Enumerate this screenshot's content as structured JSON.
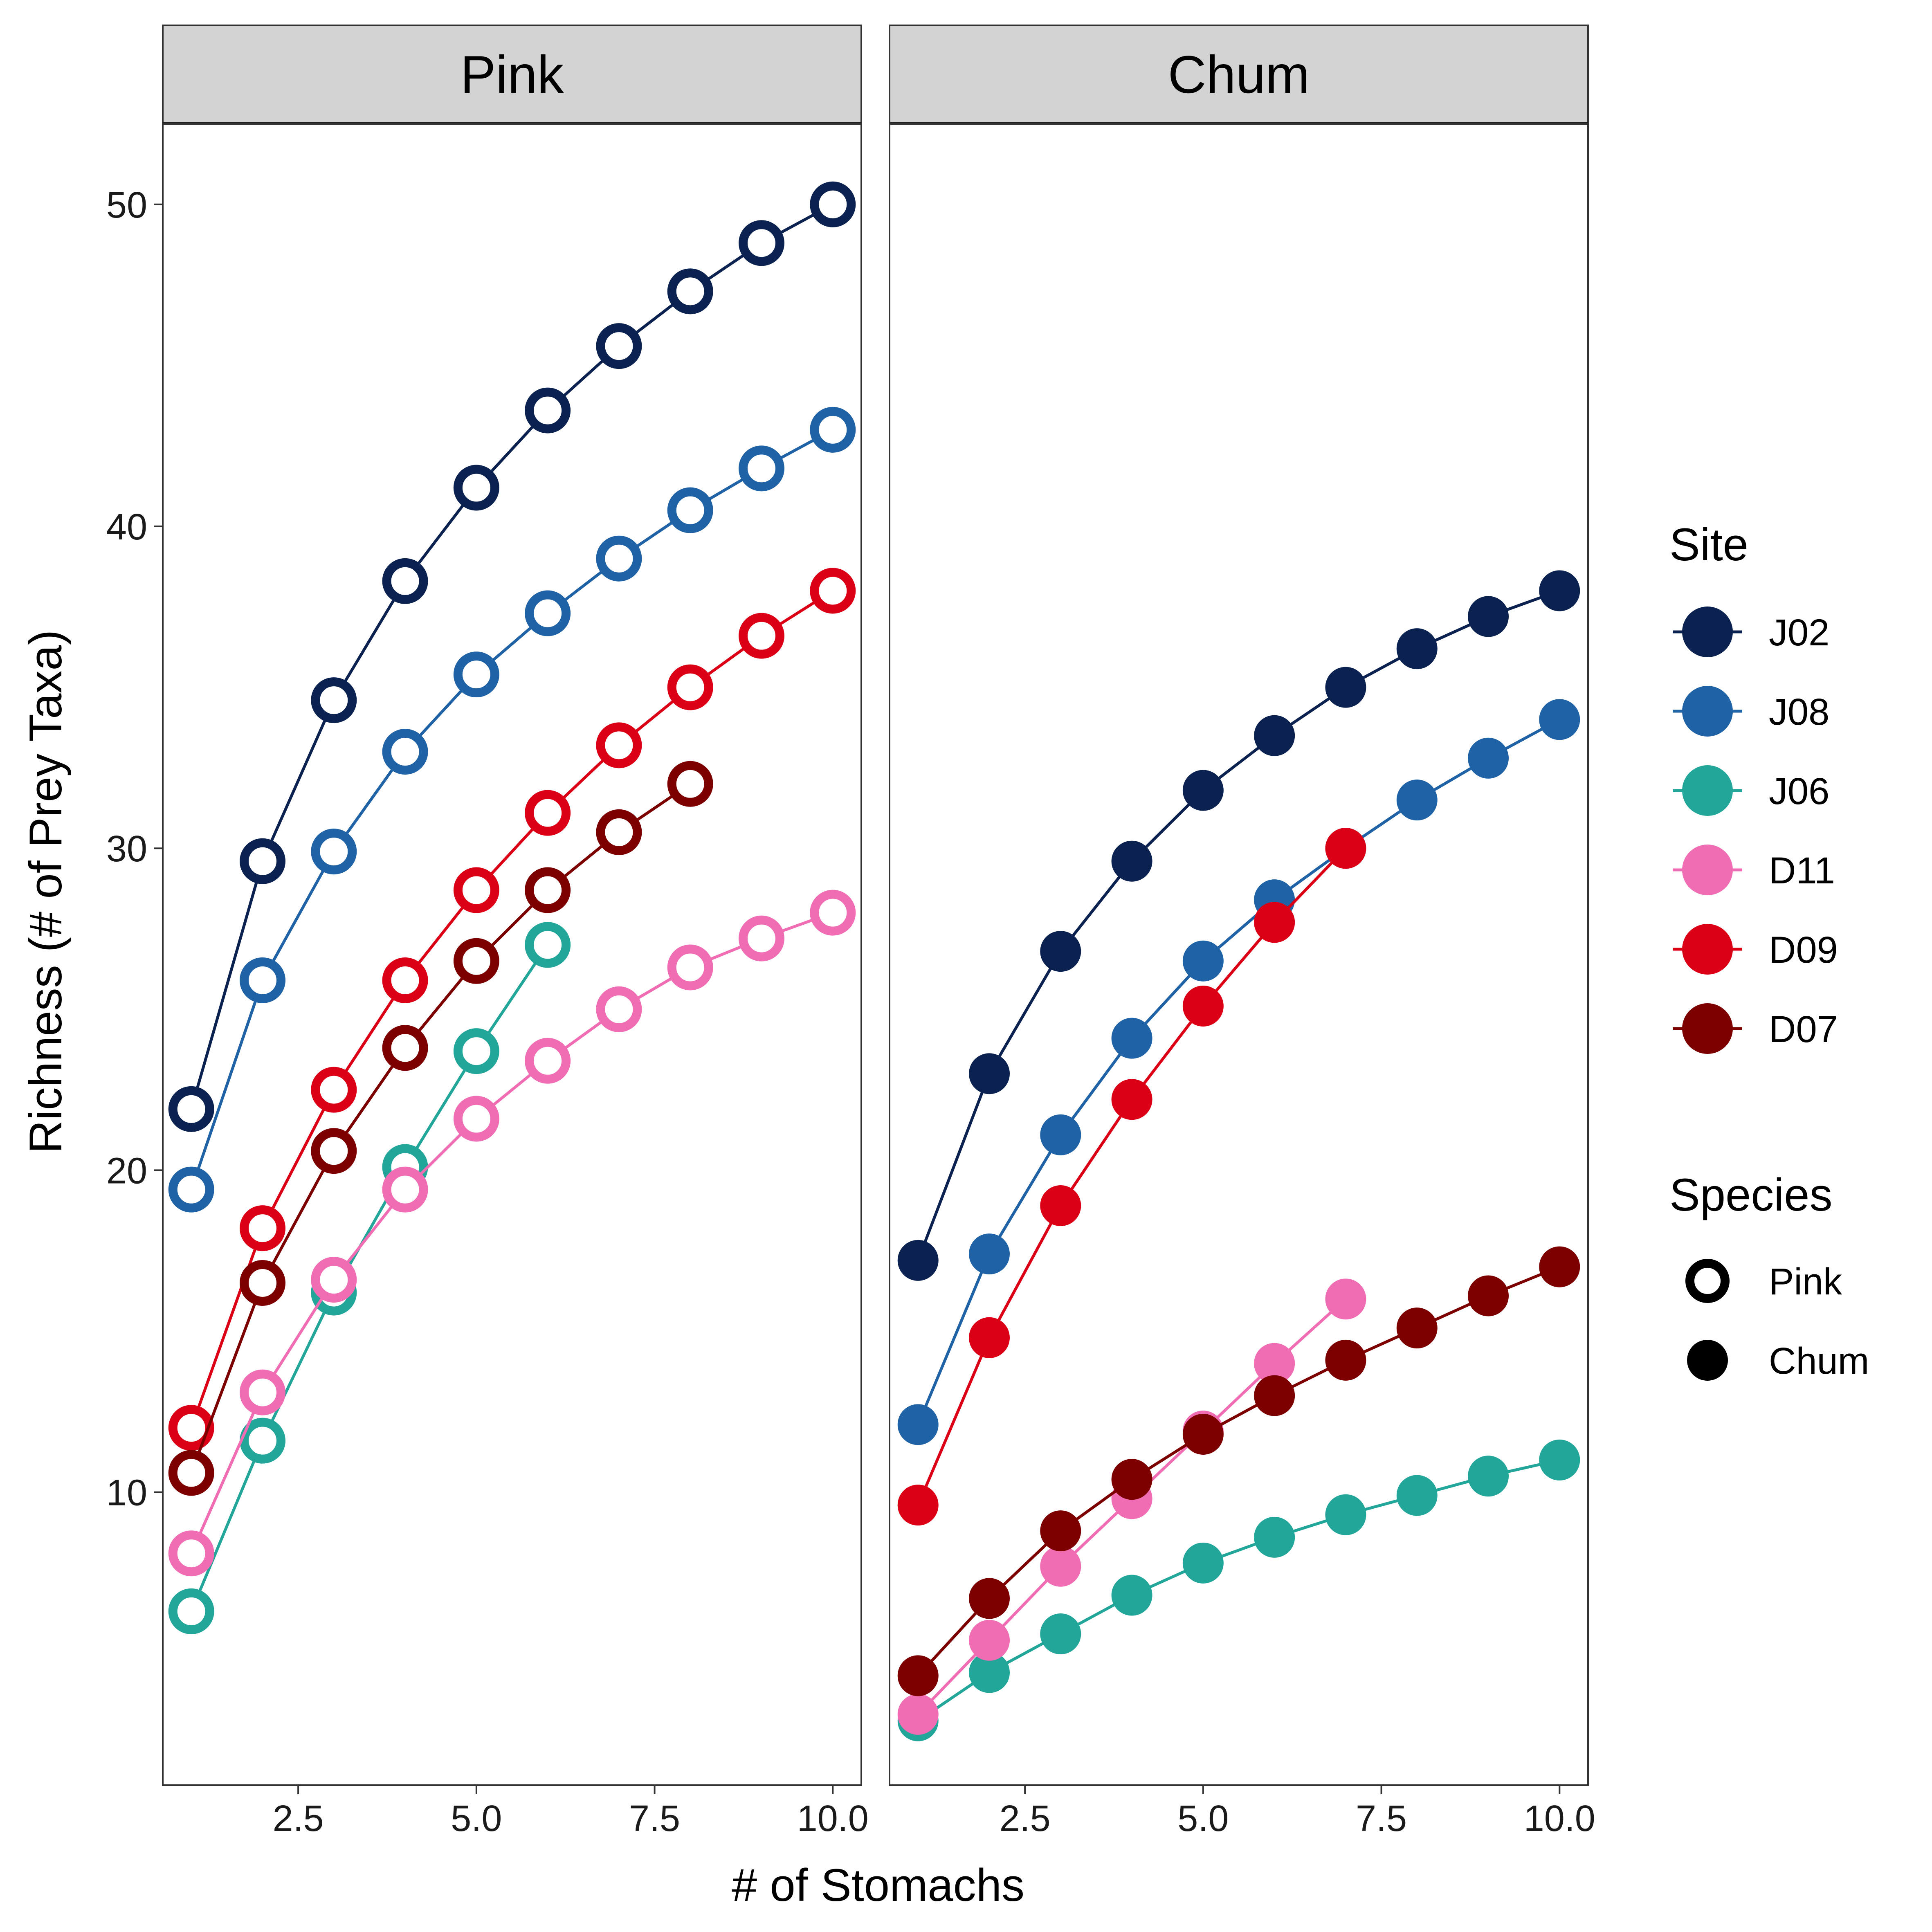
{
  "chart_data": {
    "type": "line",
    "xlabel": "# of Stomachs",
    "ylabel": "Richness (# of Prey Taxa)",
    "xlim": [
      0.6,
      10.4
    ],
    "ylim": [
      0.9,
      52.5
    ],
    "x_ticks": [
      "2.5",
      "5.0",
      "7.5",
      "10.0"
    ],
    "y_ticks": [
      "10",
      "20",
      "30",
      "40",
      "50"
    ],
    "grid": false,
    "legend_position": "right",
    "panels": [
      {
        "title": "Pink",
        "marker": "open",
        "series": [
          {
            "name": "J02",
            "x": [
              1,
              2,
              3,
              4,
              5,
              6,
              7,
              8,
              9,
              10
            ],
            "y": [
              21.9,
              29.6,
              34.6,
              38.3,
              41.2,
              43.6,
              45.6,
              47.3,
              48.8,
              50.0
            ]
          },
          {
            "name": "J08",
            "x": [
              1,
              2,
              3,
              4,
              5,
              6,
              7,
              8,
              9,
              10
            ],
            "y": [
              19.4,
              25.9,
              29.9,
              33.0,
              35.4,
              37.3,
              39.0,
              40.5,
              41.8,
              43.0
            ]
          },
          {
            "name": "J06",
            "x": [
              1,
              2,
              3,
              4,
              5,
              6
            ],
            "y": [
              6.3,
              11.6,
              16.2,
              20.1,
              23.7,
              27.0
            ]
          },
          {
            "name": "D11",
            "x": [
              1,
              2,
              3,
              4,
              5,
              6,
              7,
              8,
              9,
              10
            ],
            "y": [
              8.1,
              13.1,
              16.6,
              19.4,
              21.6,
              23.4,
              25.0,
              26.3,
              27.2,
              28.0
            ]
          },
          {
            "name": "D09",
            "x": [
              1,
              2,
              3,
              4,
              5,
              6,
              7,
              8,
              9,
              10
            ],
            "y": [
              12.0,
              18.2,
              22.5,
              25.9,
              28.7,
              31.1,
              33.2,
              35.0,
              36.6,
              38.0
            ]
          },
          {
            "name": "D07",
            "x": [
              1,
              2,
              3,
              4,
              5,
              6,
              7,
              8
            ],
            "y": [
              10.6,
              16.5,
              20.6,
              23.8,
              26.5,
              28.7,
              30.5,
              32.0
            ]
          }
        ]
      },
      {
        "title": "Chum",
        "marker": "filled",
        "series": [
          {
            "name": "J02",
            "x": [
              1,
              2,
              3,
              4,
              5,
              6,
              7,
              8,
              9,
              10
            ],
            "y": [
              17.2,
              23.0,
              26.8,
              29.6,
              31.8,
              33.5,
              35.0,
              36.2,
              37.2,
              38.0
            ]
          },
          {
            "name": "J08",
            "x": [
              1,
              2,
              3,
              4,
              5,
              6,
              7,
              8,
              9,
              10
            ],
            "y": [
              12.1,
              17.4,
              21.1,
              24.1,
              26.5,
              28.4,
              30.0,
              31.5,
              32.8,
              34.0
            ]
          },
          {
            "name": "J06",
            "x": [
              1,
              2,
              3,
              4,
              5,
              6,
              7,
              8,
              9,
              10
            ],
            "y": [
              2.9,
              4.4,
              5.6,
              6.8,
              7.8,
              8.6,
              9.3,
              9.9,
              10.5,
              11.0
            ]
          },
          {
            "name": "D11",
            "x": [
              1,
              2,
              3,
              4,
              5,
              6,
              7
            ],
            "y": [
              3.1,
              5.4,
              7.7,
              9.8,
              11.9,
              14.0,
              16.0
            ]
          },
          {
            "name": "D09",
            "x": [
              1,
              2,
              3,
              4,
              5,
              6,
              7
            ],
            "y": [
              9.6,
              14.8,
              18.9,
              22.2,
              25.1,
              27.7,
              30.0
            ]
          },
          {
            "name": "D07",
            "x": [
              1,
              2,
              3,
              4,
              5,
              6,
              7,
              8,
              9,
              10
            ],
            "y": [
              4.3,
              6.7,
              8.8,
              10.4,
              11.8,
              13.0,
              14.1,
              15.1,
              16.1,
              17.0
            ]
          }
        ]
      }
    ],
    "legend": {
      "site_title": "Site",
      "sites": [
        {
          "name": "J02",
          "color": "#0b2251"
        },
        {
          "name": "J08",
          "color": "#1f62a5"
        },
        {
          "name": "J06",
          "color": "#22a699"
        },
        {
          "name": "D11",
          "color": "#f06db3"
        },
        {
          "name": "D09",
          "color": "#dc0017"
        },
        {
          "name": "D07",
          "color": "#7d0000"
        }
      ],
      "species_title": "Species",
      "species": [
        {
          "name": "Pink",
          "marker": "open"
        },
        {
          "name": "Chum",
          "marker": "filled"
        }
      ]
    }
  }
}
